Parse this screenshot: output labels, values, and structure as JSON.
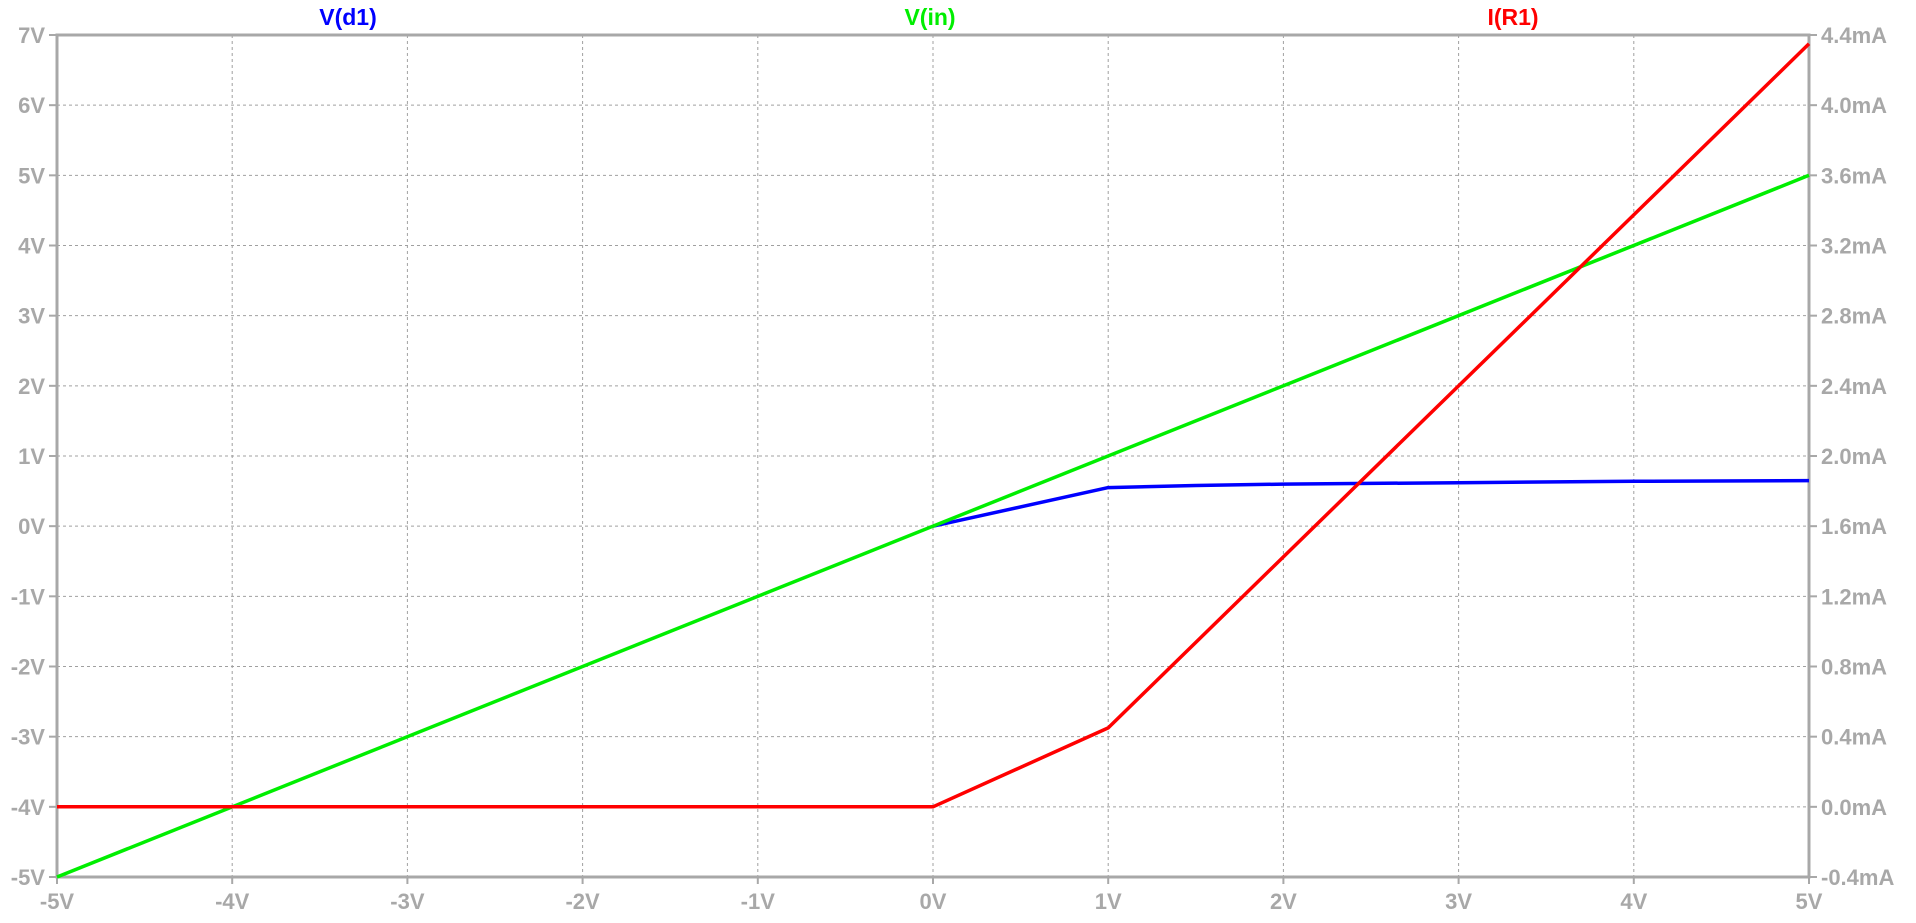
{
  "chart_data": {
    "type": "line",
    "x_ticks": [
      "-5V",
      "-4V",
      "-3V",
      "-2V",
      "-1V",
      "0V",
      "1V",
      "2V",
      "3V",
      "4V",
      "5V"
    ],
    "x_tick_values": [
      -5,
      -4,
      -3,
      -2,
      -1,
      0,
      1,
      2,
      3,
      4,
      5
    ],
    "xlim": [
      -5,
      5
    ],
    "y_left_ticks": [
      "7V",
      "6V",
      "5V",
      "4V",
      "3V",
      "2V",
      "1V",
      "0V",
      "-1V",
      "-2V",
      "-3V",
      "-4V",
      "-5V"
    ],
    "y_left_tick_values": [
      7,
      6,
      5,
      4,
      3,
      2,
      1,
      0,
      -1,
      -2,
      -3,
      -4,
      -5
    ],
    "y_left_lim": [
      -5,
      7
    ],
    "y_right_ticks": [
      "4.4mA",
      "4.0mA",
      "3.6mA",
      "3.2mA",
      "2.8mA",
      "2.4mA",
      "2.0mA",
      "1.6mA",
      "1.2mA",
      "0.8mA",
      "0.4mA",
      "0.0mA",
      "-0.4mA"
    ],
    "y_right_tick_values": [
      4.4,
      4.0,
      3.6,
      3.2,
      2.8,
      2.4,
      2.0,
      1.6,
      1.2,
      0.8,
      0.4,
      0.0,
      -0.4
    ],
    "y_right_lim": [
      -0.4,
      4.4
    ],
    "grid": true,
    "legend": "top",
    "series": [
      {
        "name": "V(d1)",
        "color": "#0000ff",
        "axis": "left",
        "x": [
          0,
          1,
          1.5,
          2,
          3,
          4,
          5
        ],
        "y": [
          0,
          0.55,
          0.58,
          0.6,
          0.62,
          0.64,
          0.65
        ]
      },
      {
        "name": "V(in)",
        "color": "#00ee00",
        "axis": "left",
        "x": [
          -5,
          5
        ],
        "y": [
          -5,
          5
        ]
      },
      {
        "name": "I(R1)",
        "color": "#ff0000",
        "axis": "right",
        "x": [
          -5,
          0,
          1,
          5
        ],
        "y": [
          0,
          0,
          0.45,
          4.35
        ]
      }
    ]
  }
}
